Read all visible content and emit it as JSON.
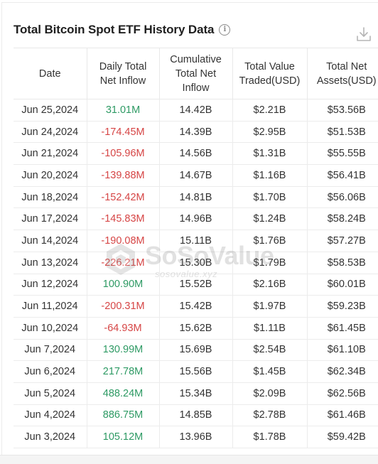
{
  "title": "Total Bitcoin Spot ETF History Data",
  "icons": {
    "info": "info-icon",
    "download": "download-icon",
    "logo": "sosovalue-logo"
  },
  "colors": {
    "positive": "#2e9a64",
    "negative": "#d64545"
  },
  "columns": [
    "Date",
    "Daily Total\nNet Inflow",
    "Cumulative\nTotal Net\nInflow",
    "Total Value\nTraded(USD)",
    "Total Net\nAssets(USD)"
  ],
  "rows": [
    {
      "date": "Jun 25,2024",
      "inflow": "31.01M",
      "sign": "pos",
      "cumulative": "14.42B",
      "traded": "$2.21B",
      "assets": "$53.56B"
    },
    {
      "date": "Jun 24,2024",
      "inflow": "-174.45M",
      "sign": "neg",
      "cumulative": "14.39B",
      "traded": "$2.95B",
      "assets": "$51.53B"
    },
    {
      "date": "Jun 21,2024",
      "inflow": "-105.96M",
      "sign": "neg",
      "cumulative": "14.56B",
      "traded": "$1.31B",
      "assets": "$55.55B"
    },
    {
      "date": "Jun 20,2024",
      "inflow": "-139.88M",
      "sign": "neg",
      "cumulative": "14.67B",
      "traded": "$1.16B",
      "assets": "$56.41B"
    },
    {
      "date": "Jun 18,2024",
      "inflow": "-152.42M",
      "sign": "neg",
      "cumulative": "14.81B",
      "traded": "$1.70B",
      "assets": "$56.06B"
    },
    {
      "date": "Jun 17,2024",
      "inflow": "-145.83M",
      "sign": "neg",
      "cumulative": "14.96B",
      "traded": "$1.24B",
      "assets": "$58.24B"
    },
    {
      "date": "Jun 14,2024",
      "inflow": "-190.08M",
      "sign": "neg",
      "cumulative": "15.11B",
      "traded": "$1.76B",
      "assets": "$57.27B"
    },
    {
      "date": "Jun 13,2024",
      "inflow": "-226.21M",
      "sign": "neg",
      "cumulative": "15.30B",
      "traded": "$1.79B",
      "assets": "$58.53B"
    },
    {
      "date": "Jun 12,2024",
      "inflow": "100.90M",
      "sign": "pos",
      "cumulative": "15.52B",
      "traded": "$2.16B",
      "assets": "$60.01B"
    },
    {
      "date": "Jun 11,2024",
      "inflow": "-200.31M",
      "sign": "neg",
      "cumulative": "15.42B",
      "traded": "$1.97B",
      "assets": "$59.23B"
    },
    {
      "date": "Jun 10,2024",
      "inflow": "-64.93M",
      "sign": "neg",
      "cumulative": "15.62B",
      "traded": "$1.11B",
      "assets": "$61.45B"
    },
    {
      "date": "Jun 7,2024",
      "inflow": "130.99M",
      "sign": "pos",
      "cumulative": "15.69B",
      "traded": "$2.54B",
      "assets": "$61.10B"
    },
    {
      "date": "Jun 6,2024",
      "inflow": "217.78M",
      "sign": "pos",
      "cumulative": "15.56B",
      "traded": "$1.45B",
      "assets": "$62.34B"
    },
    {
      "date": "Jun 5,2024",
      "inflow": "488.24M",
      "sign": "pos",
      "cumulative": "15.34B",
      "traded": "$2.09B",
      "assets": "$62.56B"
    },
    {
      "date": "Jun 4,2024",
      "inflow": "886.75M",
      "sign": "pos",
      "cumulative": "14.85B",
      "traded": "$2.78B",
      "assets": "$61.46B"
    },
    {
      "date": "Jun 3,2024",
      "inflow": "105.12M",
      "sign": "pos",
      "cumulative": "13.96B",
      "traded": "$1.78B",
      "assets": "$59.42B"
    }
  ],
  "watermark": {
    "brand": "SoSoValue",
    "domain": "sosovalue.xyz"
  }
}
